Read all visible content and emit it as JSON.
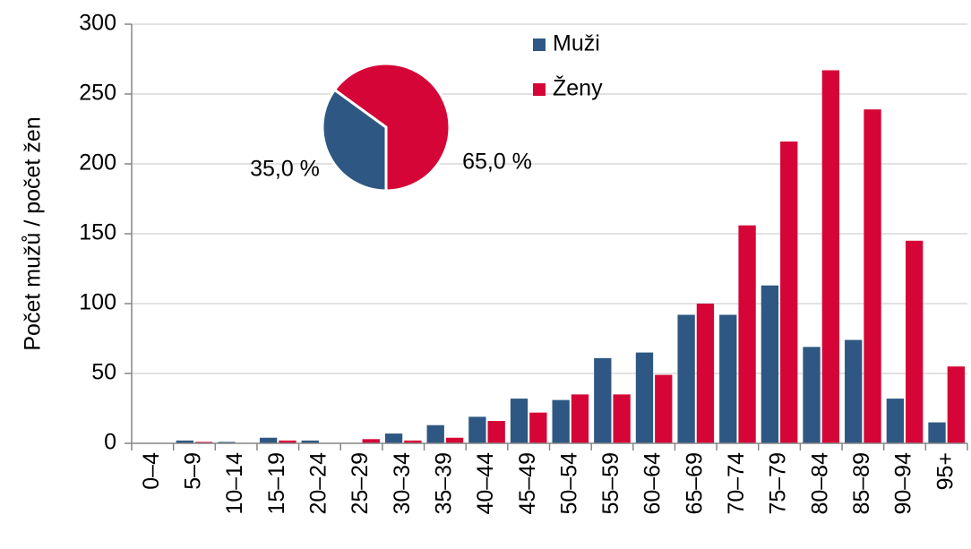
{
  "chart_data": [
    {
      "type": "bar",
      "ylabel": "Počet mužů / počet žen",
      "categories": [
        "0–4",
        "5–9",
        "10–14",
        "15–19",
        "20–24",
        "25–29",
        "30–34",
        "35–39",
        "40–44",
        "45–49",
        "50–54",
        "55–59",
        "60–64",
        "65–69",
        "70–74",
        "75–79",
        "80–84",
        "85–89",
        "90–94",
        "95+"
      ],
      "series": [
        {
          "name": "Muži",
          "color": "#2e5883",
          "values": [
            0,
            2,
            1,
            4,
            2,
            0,
            7,
            13,
            19,
            32,
            31,
            61,
            65,
            92,
            92,
            113,
            69,
            74,
            32,
            15
          ]
        },
        {
          "name": "Ženy",
          "color": "#d50637",
          "values": [
            0,
            1,
            0,
            2,
            0,
            3,
            2,
            4,
            16,
            22,
            35,
            35,
            49,
            100,
            156,
            216,
            267,
            239,
            145,
            55
          ]
        }
      ],
      "ylim": [
        0,
        300
      ],
      "yticks": [
        0,
        50,
        100,
        150,
        200,
        250,
        300
      ],
      "grid": true,
      "legend": "top"
    },
    {
      "type": "pie",
      "values": [
        35,
        65
      ],
      "value_labels": [
        "35,0 %",
        "65,0 %"
      ],
      "colors": [
        "#2e5883",
        "#d50637"
      ]
    }
  ]
}
